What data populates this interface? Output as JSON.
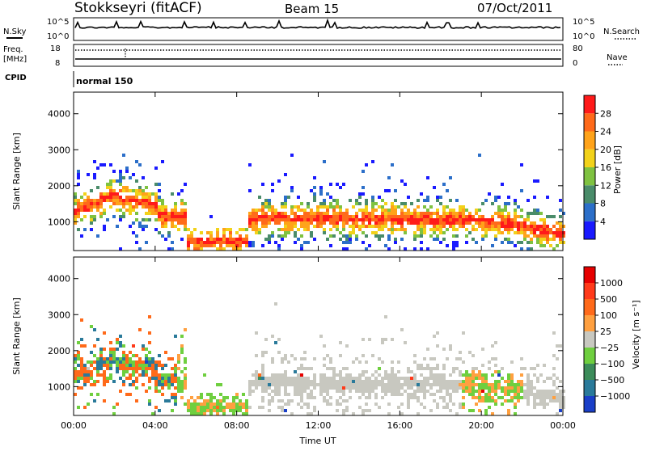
{
  "header": {
    "station": "Stokkseyri (fitACF)",
    "beam": "Beam 15",
    "date": "07/Oct/2011"
  },
  "left_labels": {
    "nsky": "N.Sky",
    "freq": "Freq.",
    "mhz": "[MHz]",
    "cpid": "CPID"
  },
  "right_labels": {
    "nsearch": "N.Search",
    "nave": "Nave"
  },
  "nsky_panel": {
    "ticks_left": [
      "10^5",
      "10^0"
    ],
    "ticks_right": [
      "10^5",
      "10^0"
    ]
  },
  "freq_panel": {
    "ticks_left": [
      "18",
      "8"
    ],
    "ticks_right": [
      "80",
      "0"
    ]
  },
  "cpid_text": "normal 150",
  "chart_data": [
    {
      "type": "heatmap",
      "id": "power",
      "ylabel": "Slant Range [km]",
      "y_ticks": [
        "4000",
        "3000",
        "2000",
        "1000"
      ],
      "ylim": [
        200,
        4600
      ],
      "xlim": [
        0,
        24
      ],
      "colorbar": {
        "label": "Power [dB]",
        "ticks": [
          "28",
          "24",
          "20",
          "16",
          "12",
          "8",
          "4"
        ],
        "colors": [
          "#1a1aff",
          "#2c6fc9",
          "#4a8c6a",
          "#7fc241",
          "#f2d21a",
          "#ffa31a",
          "#ff6a1a",
          "#ff1a1a"
        ]
      }
    },
    {
      "type": "heatmap",
      "id": "velocity",
      "ylabel": "Slant Range [km]",
      "y_ticks": [
        "4000",
        "3000",
        "2000",
        "1000"
      ],
      "ylim": [
        200,
        4600
      ],
      "xlim": [
        0,
        24
      ],
      "xlabel": "Time UT",
      "x_ticks": [
        "00:00",
        "04:00",
        "08:00",
        "12:00",
        "16:00",
        "20:00",
        "00:00"
      ],
      "colorbar": {
        "label": "Velocity [m s⁻¹]",
        "ticks": [
          "1000",
          "500",
          "100",
          "25",
          "−25",
          "−100",
          "−500",
          "−1000"
        ],
        "colors": [
          "#1a3fc8",
          "#2a7a9a",
          "#3c8c5a",
          "#6fcf3f",
          "#c8c8c0",
          "#ffa040",
          "#ff6a1a",
          "#ff3a1a",
          "#e60000"
        ]
      }
    }
  ]
}
